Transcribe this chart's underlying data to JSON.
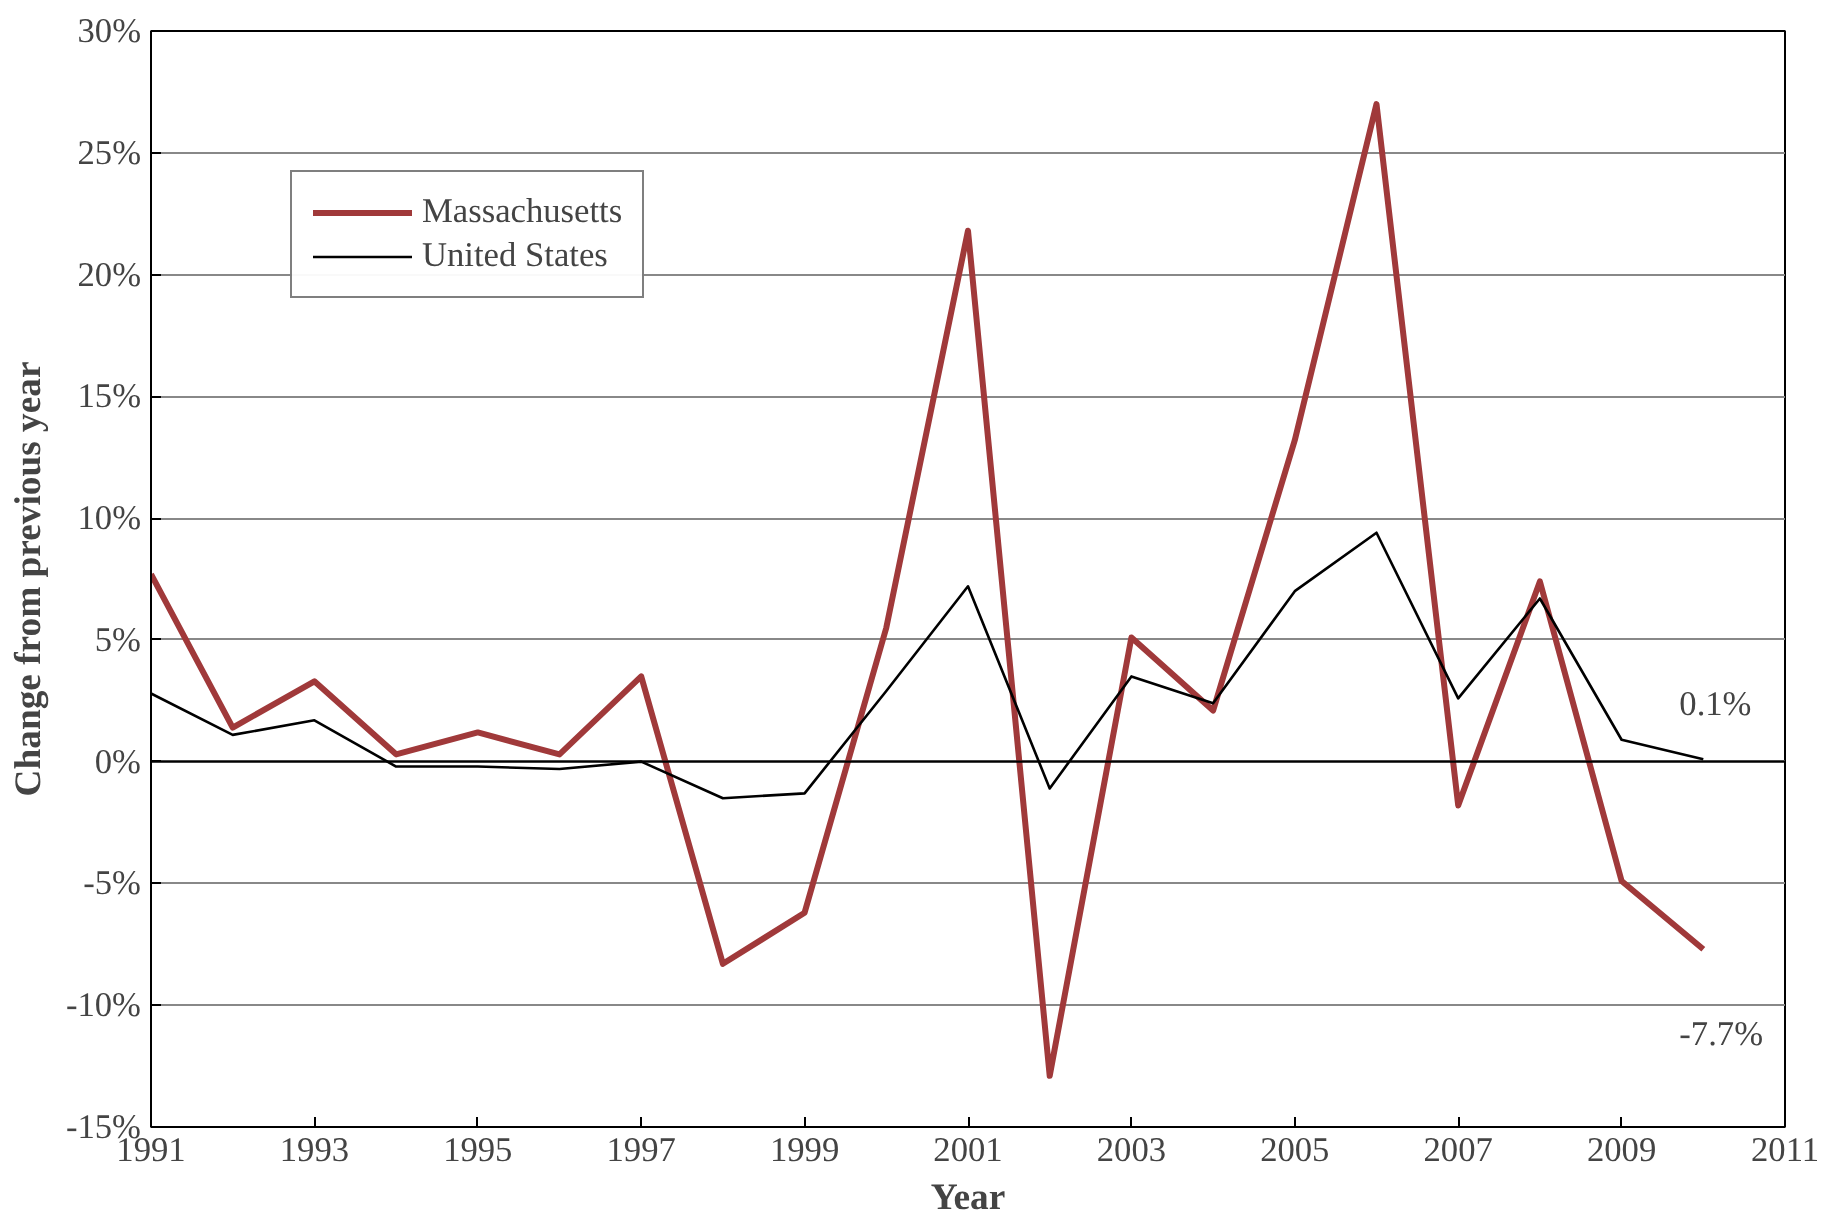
{
  "chart_data": {
    "type": "line",
    "xlabel": "Year",
    "ylabel": "Change from previous year",
    "x": [
      1991,
      1992,
      1993,
      1994,
      1995,
      1996,
      1997,
      1998,
      1999,
      2000,
      2001,
      2002,
      2003,
      2004,
      2005,
      2006,
      2007,
      2008,
      2009,
      2010
    ],
    "series": [
      {
        "name": "Massachusetts",
        "color": "#a0393a",
        "values": [
          7.7,
          1.4,
          3.3,
          0.3,
          1.2,
          0.3,
          3.5,
          -8.3,
          -6.2,
          5.5,
          21.8,
          -12.9,
          5.1,
          2.1,
          13.2,
          27.0,
          -1.8,
          7.4,
          -4.9,
          -7.7
        ]
      },
      {
        "name": "United States",
        "color": "#000000",
        "values": [
          2.8,
          1.1,
          1.7,
          -0.2,
          -0.2,
          -0.3,
          0.0,
          -1.5,
          -1.3,
          2.9,
          7.2,
          -1.1,
          3.5,
          2.4,
          7.0,
          9.4,
          2.6,
          6.7,
          0.9,
          0.1
        ]
      }
    ],
    "xlim": [
      1991,
      2011
    ],
    "xticks": [
      1991,
      1993,
      1995,
      1997,
      1999,
      2001,
      2003,
      2005,
      2007,
      2009,
      2011
    ],
    "ylim": [
      -15,
      30
    ],
    "yticks": [
      {
        "value": -15,
        "label": "-15%"
      },
      {
        "value": -10,
        "label": "-10%"
      },
      {
        "value": -5,
        "label": "-5%"
      },
      {
        "value": 0,
        "label": "0%"
      },
      {
        "value": 5,
        "label": "5%"
      },
      {
        "value": 10,
        "label": "10%"
      },
      {
        "value": 15,
        "label": "15%"
      },
      {
        "value": 20,
        "label": "20%"
      },
      {
        "value": 25,
        "label": "25%"
      },
      {
        "value": 30,
        "label": "30%"
      }
    ],
    "ref_lines": [
      {
        "axis": "y",
        "value": 0,
        "color": "#000000"
      }
    ],
    "annotations": [
      {
        "text": "0.1%",
        "x": 2010,
        "y": 0.1
      },
      {
        "text": "-7.7%",
        "x": 2010,
        "y": -7.7
      }
    ],
    "grid": "y",
    "legend": "top left",
    "marker": "none",
    "line_style": "solid"
  }
}
